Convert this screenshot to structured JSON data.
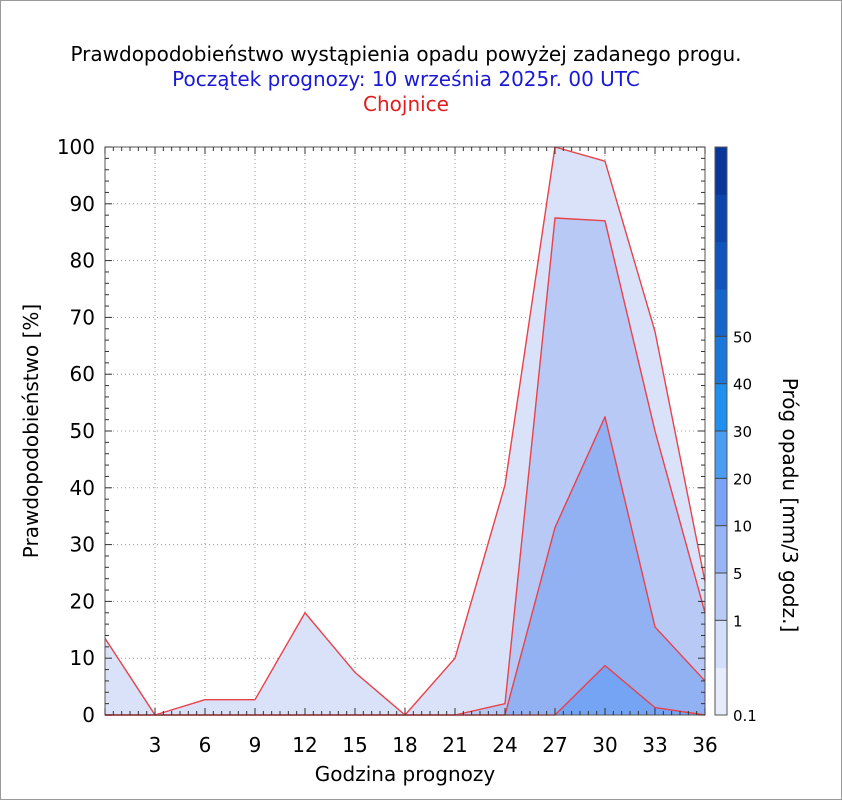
{
  "title": "Prawdopodobieństwo wystąpienia opadu powyżej zadanego progu.",
  "subtitle": "Początek prognozy: 10 września 2025r. 00 UTC",
  "location": "Chojnice",
  "colors": {
    "title": "#000000",
    "subtitle": "#1a1ad6",
    "location": "#e01e1e",
    "series_line": "#e8424a"
  },
  "chart_data": {
    "type": "area",
    "title": "Prawdopodobieństwo wystąpienia opadu powyżej zadanego progu.",
    "xlabel": "Godzina prognozy",
    "ylabel": "Prawdopodobieństwo [%]",
    "colorbar_label": "Próg opadu [mm/3 godz.]",
    "xlim": [
      0,
      36
    ],
    "ylim": [
      0,
      100
    ],
    "x_ticks": [
      3,
      6,
      9,
      12,
      15,
      18,
      21,
      24,
      27,
      30,
      33,
      36
    ],
    "y_ticks": [
      0,
      10,
      20,
      30,
      40,
      50,
      60,
      70,
      80,
      90,
      100
    ],
    "x": [
      0,
      3,
      6,
      9,
      12,
      15,
      18,
      21,
      24,
      27,
      30,
      33,
      36
    ],
    "series": [
      {
        "name": "0.1",
        "color": "#dae2fa",
        "values": [
          13.5,
          0,
          2.7,
          2.7,
          18,
          7.5,
          0,
          10,
          40.5,
          100,
          97.5,
          67.5,
          23.5
        ]
      },
      {
        "name": "1",
        "color": "#b8c9f6",
        "values": [
          0,
          0,
          0,
          0,
          0,
          0,
          0,
          0,
          2,
          87.5,
          87,
          50,
          18
        ]
      },
      {
        "name": "5",
        "color": "#92b1f2",
        "values": [
          0,
          0,
          0,
          0,
          0,
          0,
          0,
          0,
          0,
          33,
          52.5,
          15.5,
          6
        ]
      },
      {
        "name": "10",
        "color": "#76a4f4",
        "values": [
          0,
          0,
          0,
          0,
          0,
          0,
          0,
          0,
          0,
          0,
          8.7,
          1.3,
          0
        ]
      }
    ],
    "colorbar": {
      "tick_labels": [
        "0.1",
        "1",
        "5",
        "10",
        "20",
        "30",
        "40",
        "50"
      ],
      "colors": [
        "#e6ecfc",
        "#d2defa",
        "#b8cbf7",
        "#97b4f4",
        "#7aa3f5",
        "#4b9cf3",
        "#1e90f0",
        "#1a78dd",
        "#1566cc",
        "#1055bd",
        "#0c46ad",
        "#08379c"
      ]
    },
    "grid": true
  }
}
